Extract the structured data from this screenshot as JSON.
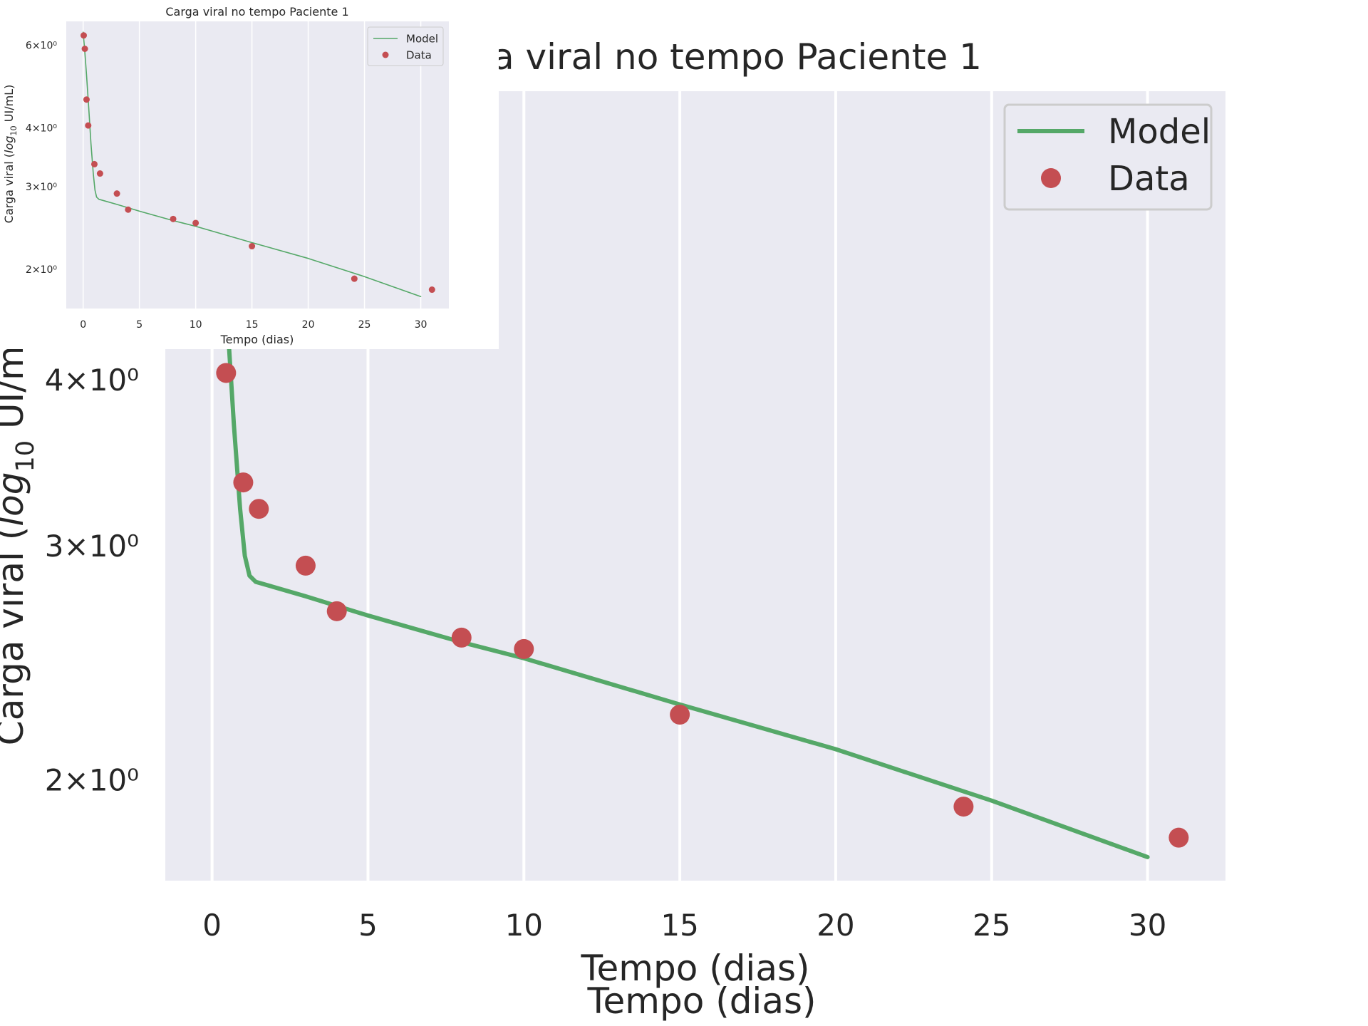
{
  "chart_data": [
    {
      "type": "line",
      "title": "Carga viral no tempo Paciente 1",
      "xlabel": "Tempo (dias)",
      "xlabel_repeat": "Tempo (dias)",
      "ylabel": "Carga viral (log10 UI/mL)",
      "ylabel_parts": {
        "a": "Carga viral (",
        "b": "log",
        "c": "10",
        "d": " UI/mL)"
      },
      "yscale": "log",
      "grid": true,
      "legend_position": "top-right",
      "xlim": [
        -1.5,
        32.5
      ],
      "ylim": [
        1.68,
        6.6
      ],
      "xticks": [
        0,
        5,
        10,
        15,
        20,
        25,
        30
      ],
      "xtick_labels": [
        "0",
        "5",
        "10",
        "15",
        "20",
        "25",
        "30"
      ],
      "yticks": [
        2,
        3,
        4,
        6
      ],
      "ytick_labels": [
        "2×10⁰",
        "3×10⁰",
        "4×10⁰",
        "6×10⁰"
      ],
      "series": [
        {
          "name": "Model",
          "kind": "line",
          "color": "#55a868",
          "x": [
            0,
            0.15,
            0.3,
            0.5,
            0.7,
            0.9,
            1.05,
            1.2,
            1.4,
            3,
            5,
            8,
            10,
            15,
            20,
            25,
            30
          ],
          "y": [
            6.4,
            5.8,
            5.2,
            4.4,
            3.7,
            3.2,
            2.95,
            2.85,
            2.82,
            2.75,
            2.66,
            2.54,
            2.47,
            2.28,
            2.11,
            1.93,
            1.75
          ]
        },
        {
          "name": "Data",
          "kind": "scatter",
          "color": "#c44e52",
          "x": [
            0.05,
            0.15,
            0.3,
            0.45,
            1.0,
            1.5,
            3.0,
            4.0,
            8.0,
            10.0,
            15.0,
            24.1,
            31.0
          ],
          "y": [
            6.3,
            5.9,
            4.6,
            4.05,
            3.35,
            3.2,
            2.9,
            2.68,
            2.56,
            2.51,
            2.24,
            1.91,
            1.81
          ]
        }
      ]
    },
    {
      "type": "line",
      "title": "Carga viral no tempo Paciente 1",
      "xlabel": "Tempo (dias)",
      "ylabel": "Carga viral (log10 UI/mL)",
      "ylabel_parts": {
        "a": "Carga viral (",
        "b": "log",
        "c": "10",
        "d": " UI/mL)"
      },
      "yscale": "log",
      "grid": true,
      "legend_position": "top-right",
      "xlim": [
        -1.5,
        32.5
      ],
      "ylim": [
        1.65,
        6.75
      ],
      "xticks": [
        0,
        5,
        10,
        15,
        20,
        25,
        30
      ],
      "xtick_labels": [
        "0",
        "5",
        "10",
        "15",
        "20",
        "25",
        "30"
      ],
      "yticks": [
        2,
        3,
        4,
        6
      ],
      "ytick_labels": [
        "2×10⁰",
        "3×10⁰",
        "4×10⁰",
        "6×10⁰"
      ],
      "series": [
        {
          "name": "Model",
          "kind": "line",
          "color": "#55a868",
          "x": [
            0,
            0.15,
            0.3,
            0.5,
            0.7,
            0.9,
            1.05,
            1.2,
            1.4,
            3,
            5,
            8,
            10,
            15,
            20,
            25,
            30
          ],
          "y": [
            6.4,
            5.8,
            5.2,
            4.4,
            3.7,
            3.2,
            2.95,
            2.85,
            2.82,
            2.75,
            2.66,
            2.54,
            2.47,
            2.28,
            2.11,
            1.93,
            1.75
          ]
        },
        {
          "name": "Data",
          "kind": "scatter",
          "color": "#c44e52",
          "x": [
            0.05,
            0.15,
            0.3,
            0.45,
            1.0,
            1.5,
            3.0,
            4.0,
            8.0,
            10.0,
            15.0,
            24.1,
            31.0
          ],
          "y": [
            6.3,
            5.9,
            4.6,
            4.05,
            3.35,
            3.2,
            2.9,
            2.68,
            2.56,
            2.51,
            2.24,
            1.91,
            1.81
          ]
        }
      ]
    }
  ],
  "colors": {
    "axes_background": "#eaeaf2",
    "grid": "#ffffff",
    "text": "#262626"
  }
}
